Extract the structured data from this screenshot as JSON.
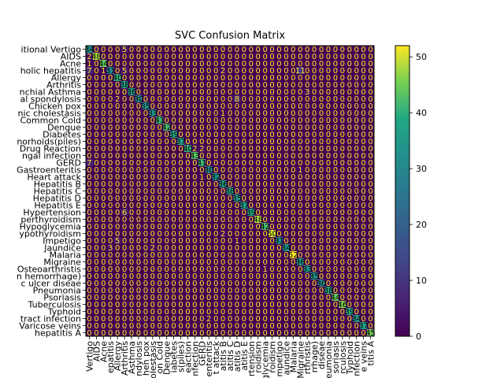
{
  "chart_data": {
    "type": "heatmap",
    "title": "SVC Confusion Matrix",
    "xlabel": "",
    "ylabel": "",
    "colormap": "viridis",
    "vmin": 0,
    "vmax": 52,
    "colorbar_ticks": [
      0,
      10,
      20,
      30,
      40,
      50
    ],
    "labels": [
      "(vertigo) Paroymsal  Positional Vertigo",
      "AIDS",
      "Acne",
      "Alcoholic hepatitis",
      "Allergy",
      "Arthritis",
      "Bronchial Asthma",
      "Cervical spondylosis",
      "Chicken pox",
      "Chronic cholestasis",
      "Common Cold",
      "Dengue",
      "Diabetes ",
      "Dimorphic hemmorhoids(piles)",
      "Drug Reaction",
      "Fungal infection",
      "GERD",
      "Gastroenteritis",
      "Heart attack",
      "Hepatitis B",
      "Hepatitis C",
      "Hepatitis D",
      "Hepatitis E",
      "Hypertension ",
      "Hyperthyroidism",
      "Hypoglycemia",
      "Hypothyroidism",
      "Impetigo",
      "Jaundice",
      "Malaria",
      "Migraine",
      "Osteoarthristis",
      "Paralysis (brain hemorrhage)",
      "Peptic ulcer diseae",
      "Pneumonia",
      "Psoriasis",
      "Tuberculosis",
      "Typhoid",
      "Urinary tract infection",
      "Varicose veins",
      "hepatitis A"
    ],
    "y_tick_text": [
      "itional Vertigo",
      "AIDS",
      "Acne",
      "holic hepatitis",
      "Allergy",
      "Arthritis",
      "nchial Asthma",
      "al spondylosis",
      "Chicken pox",
      "nic cholestasis",
      "Common Cold",
      "Dengue",
      "Diabetes",
      "norhoids(piles)",
      "Drug Reaction",
      "ngal infection",
      "GERD",
      "Gastroenteritis",
      "Heart attack",
      "Hepatitis B",
      "Hepatitis C",
      "Hepatitis D",
      "Hepatitis E",
      "Hypertension",
      "perthyroidism",
      "Hypoglycemia",
      "ypothyroidism",
      "Impetigo",
      "Jaundice",
      "Malaria",
      "Migraine",
      "Osteoarthristis",
      "n hemorrhage)",
      "c ulcer diseae",
      "Pneumonia",
      "Psoriasis",
      "Tuberculosis",
      "Typhoid",
      "tract infection",
      "Varicose veins",
      "hepatitis A"
    ],
    "x_tick_text": [
      "Vertigo",
      "AIDS",
      "Acne",
      "epatitis",
      "Allergy",
      "Arthritis",
      "Asthma",
      "ndylosis",
      "hen pox",
      "olestasis",
      "on Cold",
      "Dengue",
      "iabetes",
      "s(piles)",
      "eaction",
      "nfection",
      "GERD",
      "enteritis",
      "t attack",
      "atitis B",
      "atitis C",
      "atitis D",
      "atitis E",
      "rtension",
      "roidism",
      "glycemia",
      "roidism",
      "mpetigo",
      "aundice",
      "Malaria",
      "Migraine",
      "rthristis",
      "rrhage)",
      "diseae",
      "eumonia",
      "soriasis",
      "rculosis",
      "Typhoid",
      "nfection",
      "e veins",
      "titis A"
    ],
    "diagonal": [
      34,
      48,
      44,
      31,
      40,
      38,
      36,
      30,
      35,
      33,
      41,
      42,
      39,
      37,
      40,
      43,
      41,
      30,
      32,
      36,
      38,
      35,
      37,
      39,
      48,
      42,
      50,
      31,
      34,
      52,
      36,
      33,
      35,
      30,
      38,
      44,
      46,
      39,
      34,
      37,
      45
    ],
    "off_diagonal": [
      {
        "row": 0,
        "col": 0,
        "value": 34
      },
      {
        "row": 0,
        "col": 5,
        "value": 5
      },
      {
        "row": 1,
        "col": 0,
        "value": 2
      },
      {
        "row": 2,
        "col": 0,
        "value": 1
      },
      {
        "row": 3,
        "col": 0,
        "value": 7
      },
      {
        "row": 3,
        "col": 2,
        "value": 1
      },
      {
        "row": 3,
        "col": 3,
        "value": 31
      },
      {
        "row": 3,
        "col": 5,
        "value": 5
      },
      {
        "row": 3,
        "col": 19,
        "value": 2
      },
      {
        "row": 3,
        "col": 30,
        "value": 11
      },
      {
        "row": 6,
        "col": 31,
        "value": 3
      },
      {
        "row": 7,
        "col": 4,
        "value": 2
      },
      {
        "row": 7,
        "col": 21,
        "value": 8
      },
      {
        "row": 9,
        "col": 19,
        "value": 1
      },
      {
        "row": 14,
        "col": 15,
        "value": 2
      },
      {
        "row": 14,
        "col": 16,
        "value": 2
      },
      {
        "row": 16,
        "col": 0,
        "value": 7
      },
      {
        "row": 17,
        "col": 30,
        "value": 1
      },
      {
        "row": 18,
        "col": 16,
        "value": 1
      },
      {
        "row": 23,
        "col": 5,
        "value": 6
      },
      {
        "row": 26,
        "col": 19,
        "value": 2
      },
      {
        "row": 27,
        "col": 4,
        "value": 5
      },
      {
        "row": 27,
        "col": 21,
        "value": 1
      },
      {
        "row": 28,
        "col": 3,
        "value": 3
      },
      {
        "row": 28,
        "col": 9,
        "value": 2
      },
      {
        "row": 31,
        "col": 25,
        "value": 1
      },
      {
        "row": 38,
        "col": 17,
        "value": 2
      }
    ]
  }
}
